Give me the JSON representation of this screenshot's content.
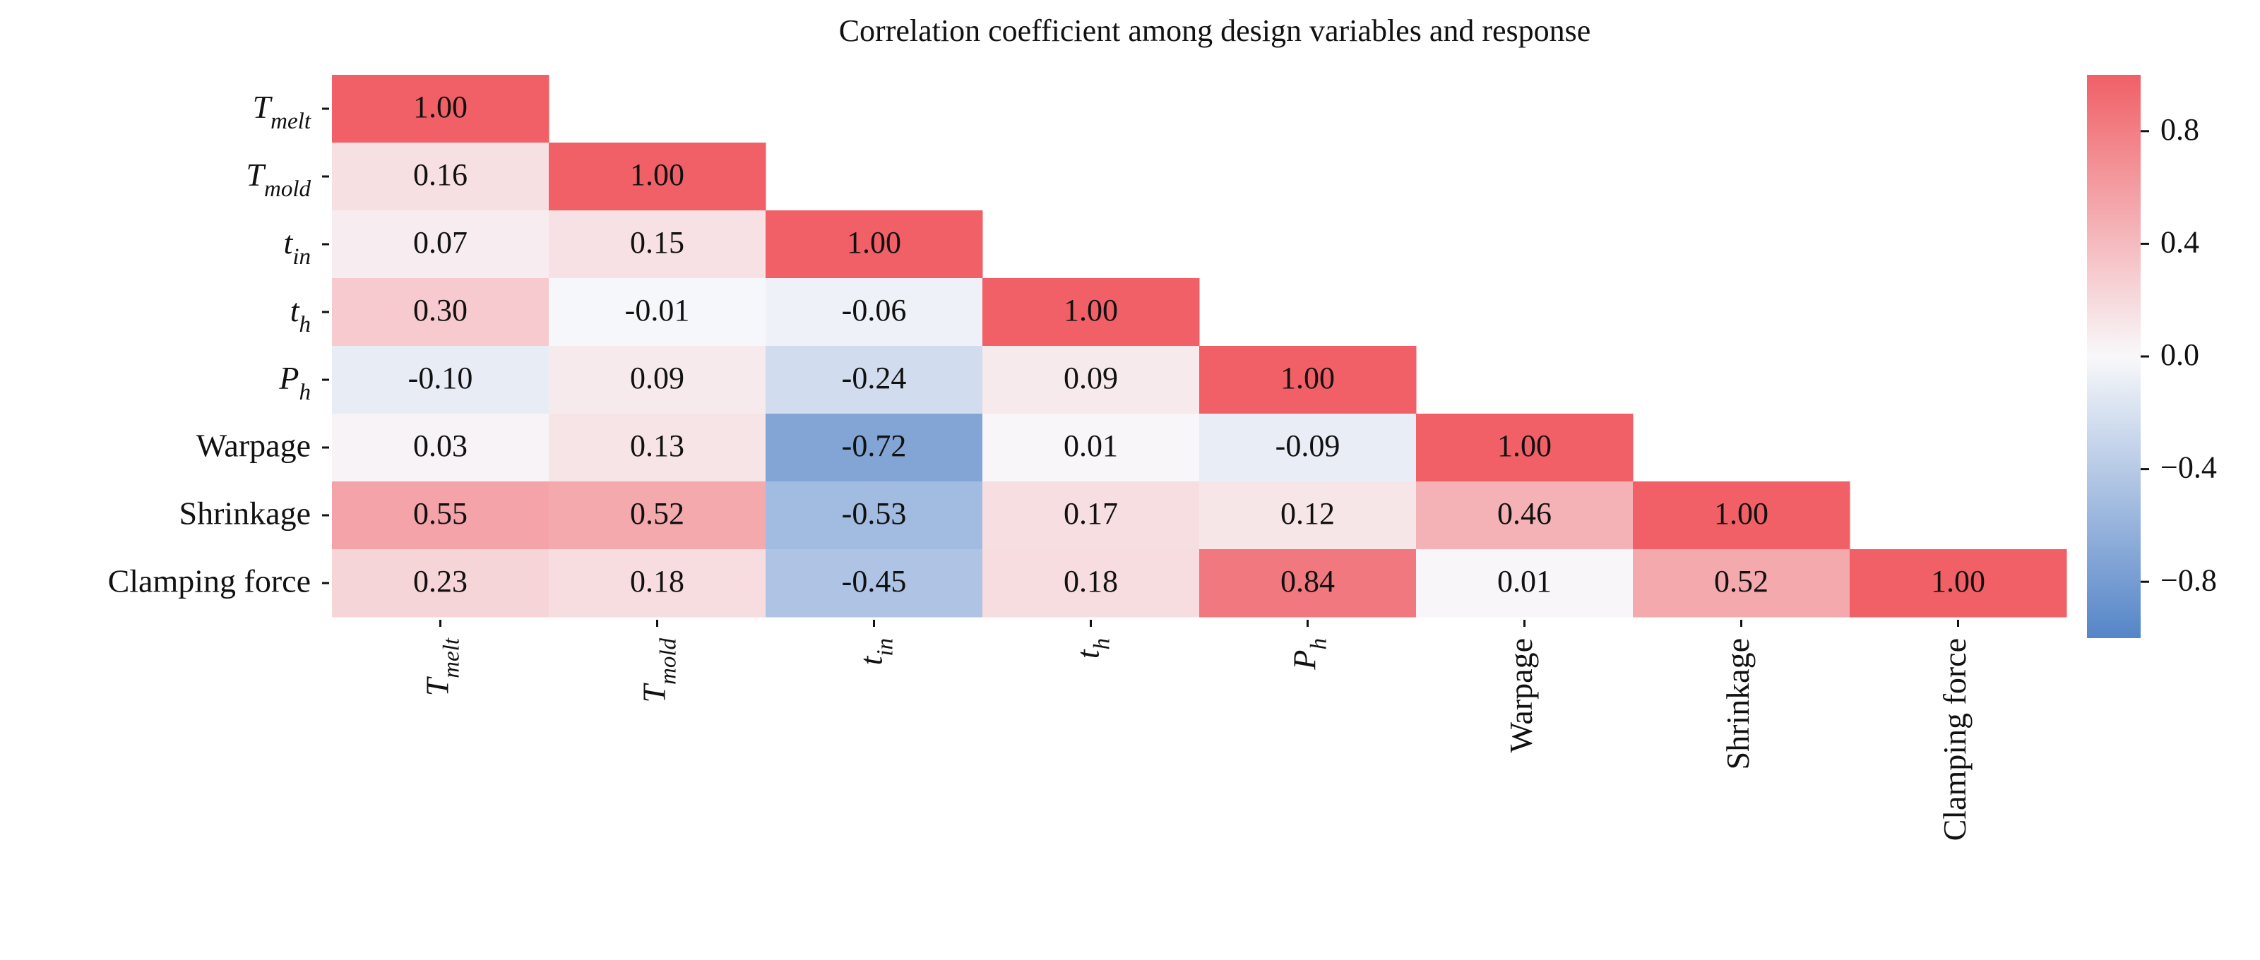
{
  "chart_data": {
    "type": "heatmap",
    "subtype": "lower-triangular correlation matrix",
    "title": "Correlation coefficient among design variables and response",
    "variables": [
      {
        "base": "T",
        "sub": "melt",
        "text": ""
      },
      {
        "base": "T",
        "sub": "mold",
        "text": ""
      },
      {
        "base": "t",
        "sub": "in",
        "text": ""
      },
      {
        "base": "t",
        "sub": "h",
        "text": ""
      },
      {
        "base": "P",
        "sub": "h",
        "text": ""
      },
      {
        "base": "",
        "sub": "",
        "text": "Warpage"
      },
      {
        "base": "",
        "sub": "",
        "text": "Shrinkage"
      },
      {
        "base": "",
        "sub": "",
        "text": "Clamping force"
      }
    ],
    "matrix": [
      [
        1.0
      ],
      [
        0.16,
        1.0
      ],
      [
        0.07,
        0.15,
        1.0
      ],
      [
        0.3,
        -0.01,
        -0.06,
        1.0
      ],
      [
        -0.1,
        0.09,
        -0.24,
        0.09,
        1.0
      ],
      [
        0.03,
        0.13,
        -0.72,
        0.01,
        -0.09,
        1.0
      ],
      [
        0.55,
        0.52,
        -0.53,
        0.17,
        0.12,
        0.46,
        1.0
      ],
      [
        0.23,
        0.18,
        -0.45,
        0.18,
        0.84,
        0.01,
        0.52,
        1.0
      ]
    ],
    "value_format": "2 decimals",
    "colorbar": {
      "range": [
        -1.0,
        1.0
      ],
      "ticks": [
        0.8,
        0.4,
        0.0,
        -0.4,
        -0.8
      ],
      "tick_labels": [
        "0.8",
        "0.4",
        "0.0",
        "−0.4",
        "−0.8"
      ],
      "colors": {
        "low": "#5585c8",
        "mid": "#f8f8fa",
        "high": "#f06066"
      }
    }
  }
}
